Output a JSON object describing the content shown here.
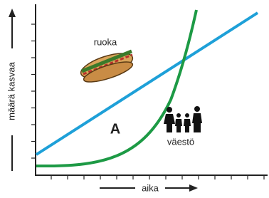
{
  "labels": {
    "y_axis": "määrä kasvaa",
    "x_axis": "aika",
    "food": "ruoka",
    "population": "väestö",
    "region": "A"
  }
}
